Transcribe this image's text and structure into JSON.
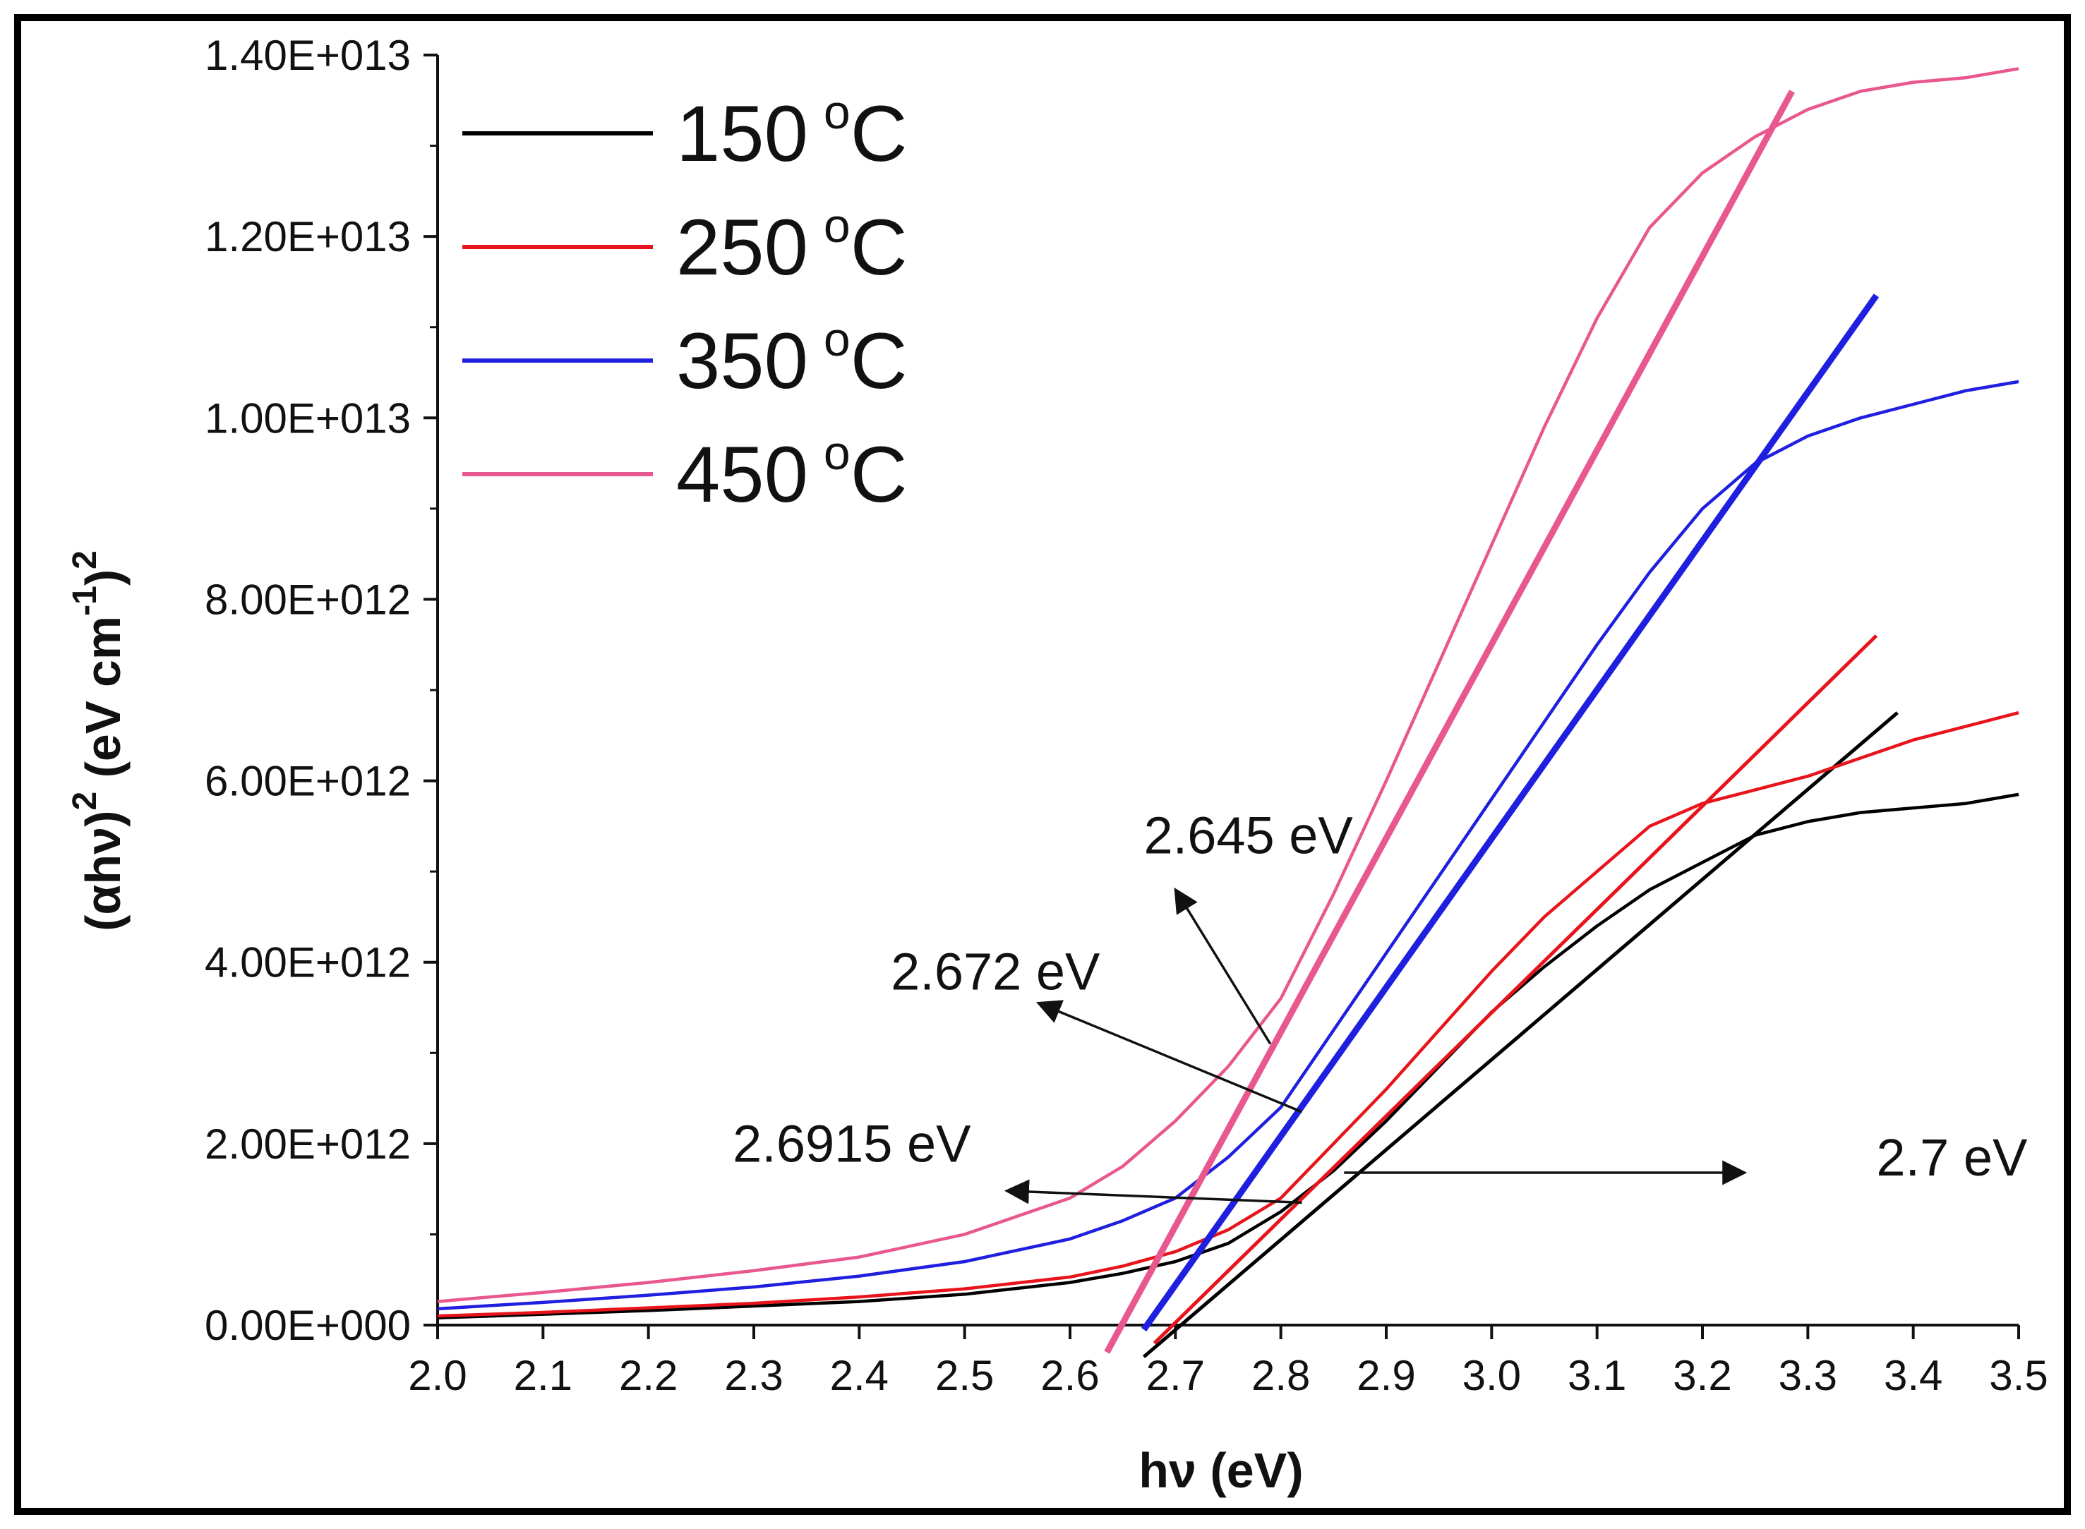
{
  "chart_data": {
    "type": "line",
    "xlabel": "hν (eV)",
    "ylabel_base": "(αhν)",
    "ylabel_sup1": "2",
    "ylabel_mid": " (eV cm",
    "ylabel_sup2": "-1",
    "ylabel_end": ")",
    "ylabel_sup3": "2",
    "xlim": [
      2.0,
      3.5
    ],
    "ylim": [
      0,
      14000000000000
    ],
    "x_ticks": [
      2.0,
      2.1,
      2.2,
      2.3,
      2.4,
      2.5,
      2.6,
      2.7,
      2.8,
      2.9,
      3.0,
      3.1,
      3.2,
      3.3,
      3.4,
      3.5
    ],
    "x_tick_labels": [
      "2.0",
      "2.1",
      "2.2",
      "2.3",
      "2.4",
      "2.5",
      "2.6",
      "2.7",
      "2.8",
      "2.9",
      "3.0",
      "3.1",
      "3.2",
      "3.3",
      "3.4",
      "3.5"
    ],
    "y_ticks": [
      0,
      2000000000000,
      4000000000000,
      6000000000000,
      8000000000000,
      10000000000000,
      12000000000000,
      14000000000000
    ],
    "y_tick_labels": [
      "0.00E+000",
      "2.00E+012",
      "4.00E+012",
      "6.00E+012",
      "8.00E+012",
      "1.00E+013",
      "1.20E+013",
      "1.40E+013"
    ],
    "series": [
      {
        "name": "150 °C",
        "legend_num": "150",
        "legend_unit": "C",
        "legend_degree": "o",
        "color": "#000000",
        "x": [
          2.0,
          2.1,
          2.2,
          2.3,
          2.4,
          2.5,
          2.6,
          2.65,
          2.7,
          2.75,
          2.8,
          2.85,
          2.9,
          2.95,
          3.0,
          3.05,
          3.1,
          3.15,
          3.2,
          3.25,
          3.3,
          3.35,
          3.4,
          3.45,
          3.5
        ],
        "y": [
          80000000000,
          120000000000,
          160000000000,
          210000000000,
          260000000000,
          340000000000,
          470000000000,
          570000000000,
          700000000000,
          900000000000,
          1250000000000,
          1700000000000,
          2250000000000,
          2850000000000,
          3450000000000,
          3950000000000,
          4400000000000,
          4800000000000,
          5100000000000,
          5400000000000,
          5550000000000,
          5650000000000,
          5700000000000,
          5750000000000,
          5850000000000
        ],
        "fit": {
          "x": [
            2.67,
            3.385
          ],
          "y": [
            -350000000000,
            6750000000000
          ]
        }
      },
      {
        "name": "250 °C",
        "legend_num": "250",
        "legend_unit": "C",
        "legend_degree": "o",
        "color": "#e8141b",
        "x": [
          2.0,
          2.1,
          2.2,
          2.3,
          2.4,
          2.5,
          2.6,
          2.65,
          2.7,
          2.75,
          2.8,
          2.85,
          2.9,
          2.95,
          3.0,
          3.05,
          3.1,
          3.15,
          3.2,
          3.25,
          3.3,
          3.35,
          3.4,
          3.45,
          3.5
        ],
        "y": [
          100000000000,
          140000000000,
          190000000000,
          240000000000,
          310000000000,
          400000000000,
          530000000000,
          650000000000,
          810000000000,
          1050000000000,
          1400000000000,
          2000000000000,
          2600000000000,
          3250000000000,
          3900000000000,
          4500000000000,
          5000000000000,
          5500000000000,
          5750000000000,
          5900000000000,
          6050000000000,
          6250000000000,
          6450000000000,
          6600000000000,
          6750000000000
        ],
        "fit": {
          "x": [
            2.68,
            3.365
          ],
          "y": [
            -200000000000,
            7600000000000
          ]
        }
      },
      {
        "name": "350 °C",
        "legend_num": "350",
        "legend_unit": "C",
        "legend_degree": "o",
        "color": "#1f1fe0",
        "x": [
          2.0,
          2.1,
          2.2,
          2.3,
          2.4,
          2.5,
          2.6,
          2.65,
          2.7,
          2.75,
          2.8,
          2.85,
          2.9,
          2.95,
          3.0,
          3.05,
          3.1,
          3.15,
          3.2,
          3.25,
          3.3,
          3.35,
          3.4,
          3.45,
          3.5
        ],
        "y": [
          180000000000,
          250000000000,
          330000000000,
          420000000000,
          540000000000,
          700000000000,
          950000000000,
          1150000000000,
          1400000000000,
          1850000000000,
          2400000000000,
          3250000000000,
          4100000000000,
          4950000000000,
          5800000000000,
          6650000000000,
          7500000000000,
          8300000000000,
          9000000000000,
          9500000000000,
          9800000000000,
          10000000000000,
          10150000000000,
          10300000000000,
          10400000000000
        ]
      },
      {
        "name": "450 °C",
        "legend_num": "450",
        "legend_unit": "C",
        "legend_degree": "o",
        "color": "#e8578d",
        "x": [
          2.0,
          2.1,
          2.2,
          2.3,
          2.4,
          2.5,
          2.6,
          2.65,
          2.7,
          2.75,
          2.8,
          2.85,
          2.9,
          2.95,
          3.0,
          3.05,
          3.1,
          3.15,
          3.2,
          3.25,
          3.3,
          3.35,
          3.4,
          3.45,
          3.5
        ],
        "y": [
          260000000000,
          360000000000,
          470000000000,
          600000000000,
          750000000000,
          1000000000000,
          1400000000000,
          1750000000000,
          2250000000000,
          2850000000000,
          3600000000000,
          4750000000000,
          6000000000000,
          7300000000000,
          8600000000000,
          9900000000000,
          11100000000000,
          12100000000000,
          12700000000000,
          13100000000000,
          13400000000000,
          13600000000000,
          13700000000000,
          13750000000000,
          13850000000000
        ]
      }
    ],
    "tangents": [
      {
        "color": "#1f1fe0",
        "x": [
          2.67,
          3.365
        ],
        "y": [
          -50000000000,
          11350000000000
        ]
      },
      {
        "color": "#e8578d",
        "x": [
          2.635,
          3.285
        ],
        "y": [
          -300000000000,
          13600000000000
        ]
      }
    ],
    "annotations": [
      {
        "text": "2.645 eV",
        "text_x": 2.67,
        "text_y": 5200000000000,
        "arrow_from": [
          2.79,
          3100000000000
        ],
        "arrow_to": [
          2.7,
          4800000000000
        ]
      },
      {
        "text": "2.672 eV",
        "text_x": 2.43,
        "text_y": 3700000000000,
        "arrow_from": [
          2.82,
          2350000000000
        ],
        "arrow_to": [
          2.57,
          3550000000000
        ]
      },
      {
        "text": "2.6915 eV",
        "text_x": 2.28,
        "text_y": 1800000000000,
        "arrow_from": [
          2.82,
          1350000000000
        ],
        "arrow_to": [
          2.54,
          1480000000000
        ]
      },
      {
        "text": "2.7 eV",
        "text_x": 3.365,
        "text_y": 1650000000000,
        "arrow_from": [
          2.86,
          1680000000000
        ],
        "arrow_to": [
          3.24,
          1680000000000
        ]
      }
    ]
  }
}
